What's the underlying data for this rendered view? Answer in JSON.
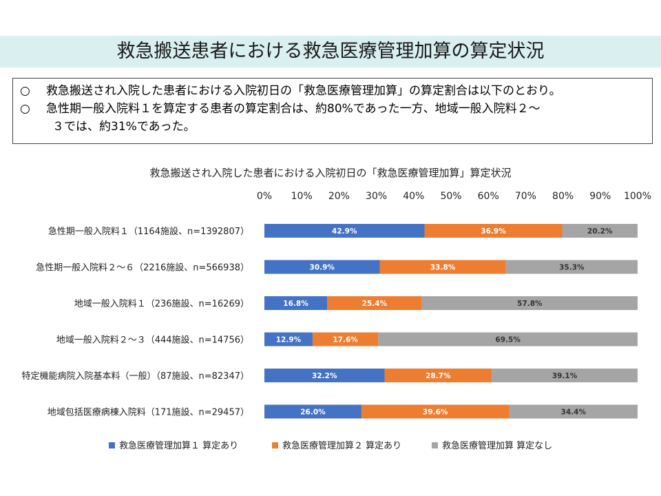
{
  "page": {
    "title": "救急搬送患者における救急医療管理加算の算定状況",
    "notes": [
      {
        "bullet": "○",
        "text": "救急搬送され入院した患者における入院初日の「救急医療管理加算」の算定割合は以下のとおり。"
      },
      {
        "bullet": "○",
        "text": "急性期一般入院料１を算定する患者の算定割合は、約80%であった一方、地域一般入院料２～",
        "continuation": "３では、約31%であった。"
      }
    ]
  },
  "colors": {
    "series1": "#4472c4",
    "series2": "#ed7d31",
    "series3": "#a5a5a5",
    "title_band": "#d9eff0"
  },
  "chart_data": {
    "type": "bar",
    "orientation": "horizontal",
    "stacked": true,
    "title": "救急搬送され入院した患者における入院初日の「救急医療管理加算」算定状況",
    "xlim": [
      0,
      100
    ],
    "x_ticks": [
      "0%",
      "10%",
      "20%",
      "30%",
      "40%",
      "50%",
      "60%",
      "70%",
      "80%",
      "90%",
      "100%"
    ],
    "x_axis_position": "top",
    "categories": [
      "急性期一般入院料１（1164施設、n=1392807）",
      "急性期一般入院料２～６（2216施設、n=566938）",
      "地域一般入院料１（236施設、n=16269）",
      "地域一般入院料２～３（444施設、n=14756）",
      "特定機能病院入院基本料（一般）（87施設、n=82347）",
      "地域包括医療病棟入院料（171施設、n=29457）"
    ],
    "series": [
      {
        "name": "救急医療管理加算１ 算定あり",
        "values": [
          42.9,
          30.9,
          16.8,
          12.9,
          32.2,
          26.0
        ],
        "labels": [
          "42.9%",
          "30.9%",
          "16.8%",
          "12.9%",
          "32.2%",
          "26.0%"
        ]
      },
      {
        "name": "救急医療管理加算２ 算定あり",
        "values": [
          36.9,
          33.8,
          25.4,
          17.6,
          28.7,
          39.6
        ],
        "labels": [
          "36.9%",
          "33.8%",
          "25.4%",
          "17.6%",
          "28.7%",
          "39.6%"
        ]
      },
      {
        "name": "救急医療管理加算 算定なし",
        "values": [
          20.2,
          35.3,
          57.8,
          69.5,
          39.1,
          34.4
        ],
        "labels": [
          "20.2%",
          "35.3%",
          "57.8%",
          "69.5%",
          "39.1%",
          "34.4%"
        ]
      }
    ],
    "legend_position": "bottom"
  }
}
